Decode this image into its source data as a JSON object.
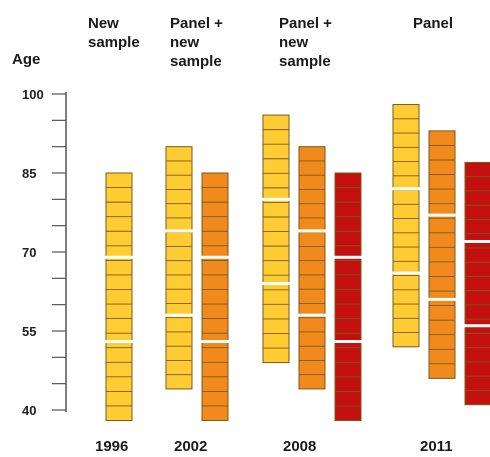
{
  "figure": {
    "y_axis_title": "Age",
    "y_ticks": [
      40,
      55,
      70,
      85,
      100
    ],
    "colors": {
      "cohort_1": "#FFCC33",
      "cohort_2": "#F08A1C",
      "cohort_3": "#C40F0F",
      "cell_border": "#7a5a1a",
      "segment_gap": "#ffffff"
    },
    "columns": [
      {
        "label_lines": [
          "New",
          "sample"
        ],
        "year": "1996",
        "bars": [
          {
            "cohort": "cohort_1",
            "age_min": 38,
            "age_max": 85,
            "breaks": [
              69,
              53
            ]
          }
        ]
      },
      {
        "label_lines": [
          "Panel +",
          "new",
          "sample"
        ],
        "year": "2002",
        "bars": [
          {
            "cohort": "cohort_1",
            "age_min": 44,
            "age_max": 90,
            "breaks": [
              74,
              58
            ]
          },
          {
            "cohort": "cohort_2",
            "age_min": 38,
            "age_max": 85,
            "breaks": [
              69,
              53
            ]
          }
        ]
      },
      {
        "label_lines": [
          "Panel +",
          "new",
          "sample"
        ],
        "year": "2008",
        "bars": [
          {
            "cohort": "cohort_1",
            "age_min": 49,
            "age_max": 96,
            "breaks": [
              80,
              64
            ]
          },
          {
            "cohort": "cohort_2",
            "age_min": 44,
            "age_max": 90,
            "breaks": [
              74,
              58
            ]
          },
          {
            "cohort": "cohort_3",
            "age_min": 38,
            "age_max": 85,
            "breaks": [
              69,
              53
            ]
          }
        ]
      },
      {
        "label_lines": [
          "Panel"
        ],
        "year": "2011",
        "bars": [
          {
            "cohort": "cohort_1",
            "age_min": 52,
            "age_max": 98,
            "breaks": [
              82,
              66
            ]
          },
          {
            "cohort": "cohort_2",
            "age_min": 46,
            "age_max": 93,
            "breaks": [
              77,
              61
            ]
          },
          {
            "cohort": "cohort_3",
            "age_min": 41,
            "age_max": 87,
            "breaks": [
              72,
              56
            ]
          }
        ]
      }
    ]
  }
}
